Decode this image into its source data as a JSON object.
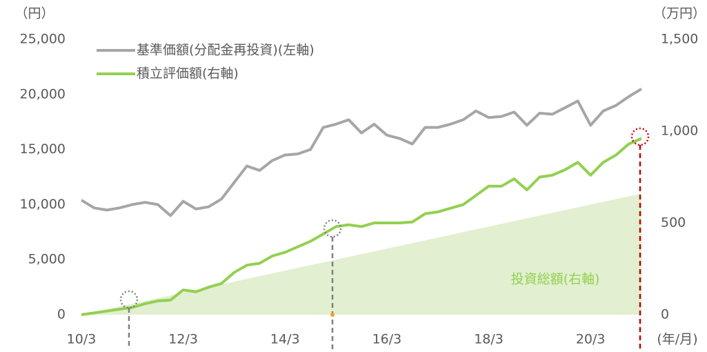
{
  "chart_data": {
    "type": "line",
    "y_label": "（円）",
    "y2_label": "（万円）",
    "x_label": "(年/月)",
    "categories": [
      "10/3",
      null,
      null,
      null,
      null,
      null,
      null,
      null,
      "12/3",
      null,
      null,
      null,
      null,
      null,
      null,
      null,
      "14/3",
      null,
      null,
      null,
      null,
      null,
      null,
      null,
      "16/3",
      null,
      null,
      null,
      null,
      null,
      null,
      null,
      "18/3",
      null,
      null,
      null,
      null,
      null,
      null,
      null,
      "20/3",
      null,
      null,
      null,
      null
    ],
    "series": [
      {
        "name": "投資総額(右軸)",
        "type": "area",
        "axis": "y2",
        "color": "#e2efd0",
        "values": [
          0,
          15,
          30,
          45,
          60,
          75,
          90,
          105,
          120,
          135,
          150,
          165,
          180,
          195,
          210,
          225,
          240,
          255,
          270,
          285,
          300,
          315,
          330,
          345,
          360,
          375,
          390,
          405,
          420,
          435,
          450,
          465,
          480,
          495,
          510,
          525,
          540,
          555,
          570,
          585,
          600,
          615,
          630,
          645,
          660
        ]
      },
      {
        "name": "基準価額(分配金再投資)(左軸)",
        "type": "line",
        "axis": "y",
        "color": "#a6a6a6",
        "values": [
          10400,
          9700,
          9500,
          9700,
          10000,
          10200,
          10000,
          9000,
          10300,
          9600,
          9800,
          10500,
          12000,
          13500,
          13100,
          14000,
          14500,
          14600,
          15000,
          17000,
          17300,
          17700,
          16500,
          17300,
          16300,
          16000,
          15500,
          17000,
          17000,
          17300,
          17700,
          18500,
          17900,
          18000,
          18400,
          17200,
          18300,
          18200,
          18800,
          19400,
          17200,
          18500,
          19000,
          19800,
          20500
        ]
      },
      {
        "name": "積立評価額(右軸)",
        "type": "line",
        "axis": "y2",
        "color": "#92d050",
        "values": [
          0,
          10,
          20,
          30,
          40,
          60,
          75,
          80,
          135,
          125,
          150,
          170,
          230,
          270,
          280,
          320,
          340,
          370,
          400,
          440,
          480,
          490,
          480,
          500,
          500,
          500,
          505,
          550,
          560,
          580,
          600,
          650,
          700,
          700,
          740,
          680,
          750,
          760,
          790,
          830,
          760,
          830,
          870,
          930,
          960
        ]
      }
    ],
    "ylim": [
      0,
      25000
    ],
    "yticks": [
      0,
      {
        "value": 5000,
        "label": "5,000"
      },
      {
        "value": 10000,
        "label": "10,000"
      },
      {
        "value": 15000,
        "label": "15,000"
      },
      {
        "value": 20000,
        "label": "20,000"
      },
      {
        "value": 25000,
        "label": "25,000"
      }
    ],
    "y2lim": [
      0,
      1500
    ],
    "y2ticks": [
      0,
      500,
      {
        "value": 1000,
        "label": "1,000"
      },
      {
        "value": 1500,
        "label": "1,500"
      }
    ],
    "grid": false
  }
}
